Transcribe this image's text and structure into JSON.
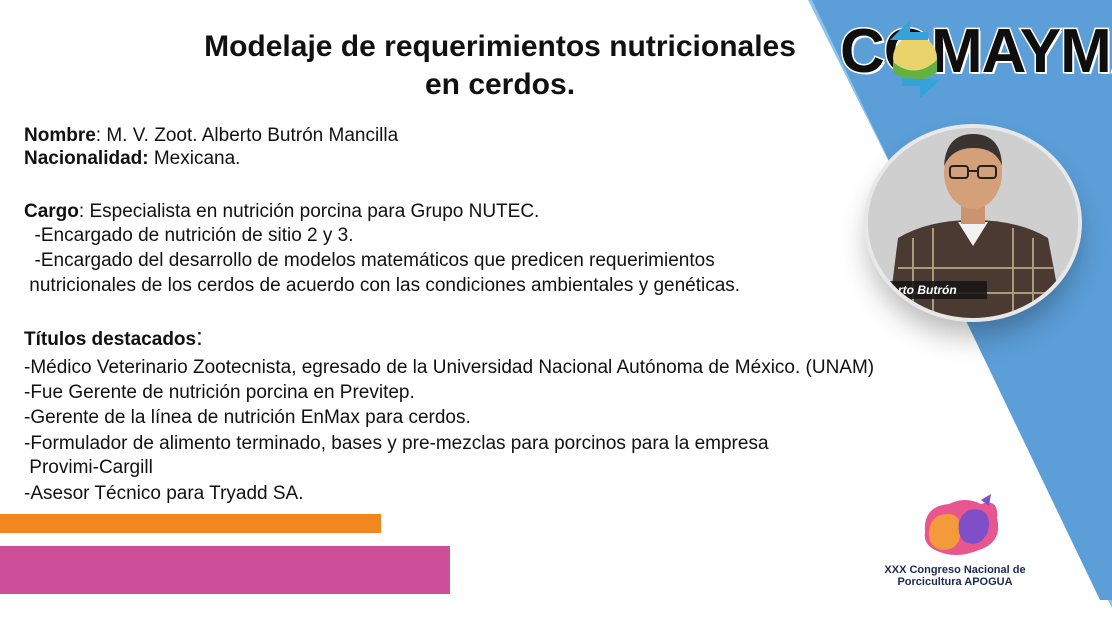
{
  "title": {
    "line1": "Modelaje de requerimientos nutricionales",
    "line2": "en cerdos."
  },
  "logo": {
    "text": "COMAYMA"
  },
  "photo": {
    "caption": "rto Butrón"
  },
  "profile": {
    "nombre_label": "Nombre",
    "nombre_value": ": M. V. Zoot. Alberto Butrón Mancilla",
    "nacionalidad_label": "Nacionalidad:",
    "nacionalidad_value": " Mexicana.",
    "cargo_label": "Cargo",
    "cargo_value": ": Especialista en nutrición porcina para Grupo NUTEC.",
    "cargo_items": [
      "  -Encargado de nutrición de sitio 2 y 3.",
      "  -Encargado del desarrollo de modelos matemáticos que predicen requerimientos",
      " nutricionales de los cerdos de acuerdo con las condiciones ambientales y genéticas."
    ],
    "titulos_label": "Títulos destacados",
    "titulos_colon": ":",
    "titulos_items": [
      "-Médico Veterinario Zootecnista, egresado de la Universidad Nacional Autónoma de México. (UNAM)",
      "-Fue Gerente de nutrición porcina en Previtep.",
      "-Gerente de la línea de nutrición EnMax para cerdos.",
      "-Formulador de alimento terminado, bases y pre-mezclas para porcinos para la empresa",
      " Provimi-Cargill",
      "-Asesor Técnico para Tryadd SA."
    ]
  },
  "congreso": {
    "line1": "XXX Congreso Nacional de",
    "line2": "Porcicultura APOGUA"
  },
  "colors": {
    "blue": "#5b9ed8",
    "light_blue": "#8cc3ea",
    "orange": "#f2861f",
    "pink": "#cd4f9a"
  }
}
